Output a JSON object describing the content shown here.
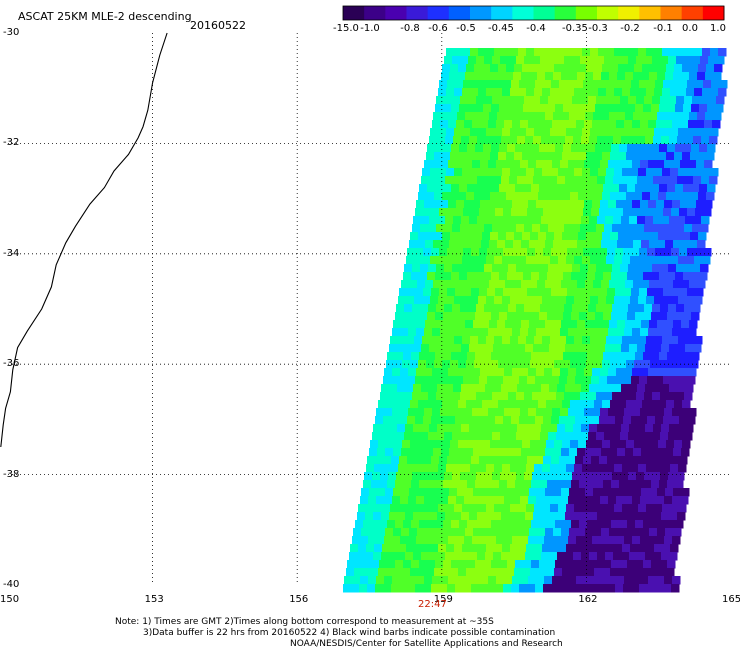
{
  "title": {
    "product": "ASCAT 25KM MLE-2 descending",
    "date": "20160522"
  },
  "colorbar": {
    "tick_labels": [
      "-15.0",
      "-1.0",
      "-0.8",
      "-0.6",
      "-0.5",
      "-0.45",
      "-0.4",
      "-0.35",
      "-0.3",
      "-0.2",
      "-0.1",
      "0.0",
      "1.0"
    ],
    "colors": [
      "#2a0055",
      "#3c0088",
      "#4a00b0",
      "#3a1ad8",
      "#1e30ff",
      "#0060ff",
      "#0098ff",
      "#00d4ff",
      "#00ffd8",
      "#00ff96",
      "#28ff3c",
      "#78ff00",
      "#c0ff00",
      "#f0f000",
      "#ffc000",
      "#ff8000",
      "#ff4000",
      "#ff0000"
    ]
  },
  "axes": {
    "lon_labels": [
      "150",
      "153",
      "156",
      "159",
      "162",
      "165"
    ],
    "lat_labels": [
      "-30",
      "-32",
      "-34",
      "-36",
      "-38",
      "-40"
    ],
    "lon_range": [
      150,
      165
    ],
    "lat_range": [
      -30,
      -40
    ],
    "gridlines": true
  },
  "swath_time": "22:47",
  "field_colors": {
    "deep_purple": "#3c0078",
    "purple": "#4a10b0",
    "blue": "#1e1eff",
    "medium_blue": "#3050ff",
    "sky": "#0096ff",
    "cyan": "#00e6ff",
    "aqua": "#00ffc8",
    "green": "#18ff50",
    "light_green": "#50ff28",
    "yellow_green": "#8cff10",
    "time_label": "#c81e00"
  },
  "notes": [
    "Note: 1) Times are GMT 2)Times along bottom correspond to measurement at ~35S",
    "3)Data buffer is 22 hrs from 20160522 4) Black wind barbs indicate possible contamination",
    "NOAA/NESDIS/Center for Satellite Applications and Research"
  ]
}
